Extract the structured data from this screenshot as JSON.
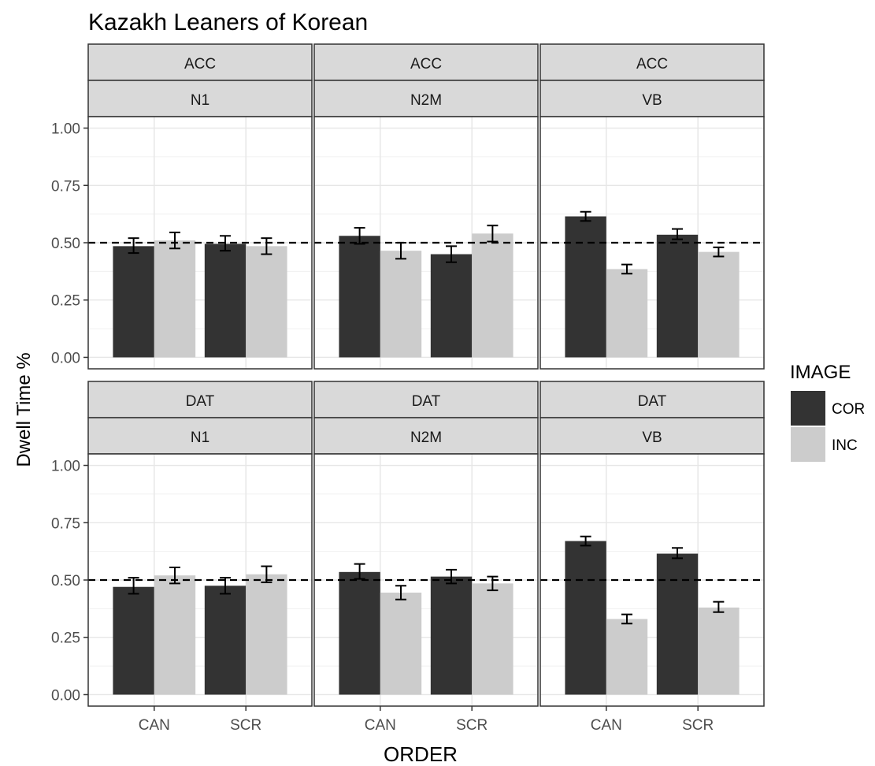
{
  "chart_data": {
    "type": "bar",
    "title": "Kazakh Leaners of Korean",
    "xlabel": "ORDER",
    "ylabel": "Dwell Time %",
    "ylim": [
      0,
      1
    ],
    "y_ticks": [
      "0.00",
      "0.25",
      "0.50",
      "0.75",
      "1.00"
    ],
    "categories": [
      "CAN",
      "SCR"
    ],
    "reference_line": 0.5,
    "grid": true,
    "legend": {
      "title": "IMAGE",
      "position": "right",
      "items": [
        {
          "name": "COR",
          "color": "#333333"
        },
        {
          "name": "INC",
          "color": "#cccccc"
        }
      ]
    },
    "facets": [
      {
        "row": "ACC",
        "col": "N1",
        "series": [
          {
            "name": "COR",
            "values": [
              0.485,
              0.495
            ],
            "err": [
              [
                0.455,
                0.52
              ],
              [
                0.465,
                0.53
              ]
            ]
          },
          {
            "name": "INC",
            "values": [
              0.51,
              0.485
            ],
            "err": [
              [
                0.475,
                0.545
              ],
              [
                0.45,
                0.52
              ]
            ]
          }
        ]
      },
      {
        "row": "ACC",
        "col": "N2M",
        "series": [
          {
            "name": "COR",
            "values": [
              0.53,
              0.45
            ],
            "err": [
              [
                0.495,
                0.565
              ],
              [
                0.415,
                0.485
              ]
            ]
          },
          {
            "name": "INC",
            "values": [
              0.465,
              0.54
            ],
            "err": [
              [
                0.43,
                0.5
              ],
              [
                0.505,
                0.575
              ]
            ]
          }
        ]
      },
      {
        "row": "ACC",
        "col": "VB",
        "series": [
          {
            "name": "COR",
            "values": [
              0.615,
              0.535
            ],
            "err": [
              [
                0.595,
                0.635
              ],
              [
                0.515,
                0.56
              ]
            ]
          },
          {
            "name": "INC",
            "values": [
              0.385,
              0.46
            ],
            "err": [
              [
                0.365,
                0.405
              ],
              [
                0.44,
                0.48
              ]
            ]
          }
        ]
      },
      {
        "row": "DAT",
        "col": "N1",
        "series": [
          {
            "name": "COR",
            "values": [
              0.47,
              0.475
            ],
            "err": [
              [
                0.44,
                0.51
              ],
              [
                0.44,
                0.51
              ]
            ]
          },
          {
            "name": "INC",
            "values": [
              0.52,
              0.525
            ],
            "err": [
              [
                0.485,
                0.555
              ],
              [
                0.49,
                0.56
              ]
            ]
          }
        ]
      },
      {
        "row": "DAT",
        "col": "N2M",
        "series": [
          {
            "name": "COR",
            "values": [
              0.535,
              0.515
            ],
            "err": [
              [
                0.505,
                0.57
              ],
              [
                0.485,
                0.545
              ]
            ]
          },
          {
            "name": "INC",
            "values": [
              0.445,
              0.485
            ],
            "err": [
              [
                0.415,
                0.475
              ],
              [
                0.455,
                0.515
              ]
            ]
          }
        ]
      },
      {
        "row": "DAT",
        "col": "VB",
        "series": [
          {
            "name": "COR",
            "values": [
              0.67,
              0.615
            ],
            "err": [
              [
                0.65,
                0.69
              ],
              [
                0.595,
                0.64
              ]
            ]
          },
          {
            "name": "INC",
            "values": [
              0.33,
              0.38
            ],
            "err": [
              [
                0.31,
                0.35
              ],
              [
                0.36,
                0.405
              ]
            ]
          }
        ]
      }
    ]
  }
}
